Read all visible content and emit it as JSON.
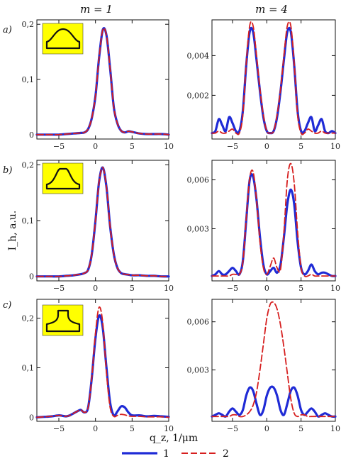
{
  "column_headers": [
    "m = 1",
    "m = 4"
  ],
  "row_labels": [
    "a)",
    "b)",
    "c)"
  ],
  "y_axis_label": "I_h, a.u.",
  "x_axis_label": "q_z, 1/μm",
  "legend": [
    {
      "label": "1",
      "color": "#1f2bd6",
      "style": "solid"
    },
    {
      "label": "2",
      "color": "#d61f1f",
      "style": "dashed"
    }
  ],
  "colors": {
    "series1": "#1f2bd6",
    "series2": "#d61f1f",
    "inset_fill": "#ffff00"
  },
  "inset_icons": [
    "ridge-profile-icon",
    "mesa-profile-icon",
    "notch-profile-icon"
  ],
  "chart_data": [
    {
      "panel": "a) m=1",
      "type": "line",
      "xlim": [
        -8,
        10
      ],
      "ylim": [
        -0.008,
        0.208
      ],
      "xticks": [
        -5,
        0,
        5,
        10
      ],
      "xtick_labels": [
        "−5",
        "0",
        "5",
        "10"
      ],
      "yticks": [
        0,
        0.1,
        0.2
      ],
      "ytick_labels": [
        "0",
        "0,1",
        "0,2"
      ],
      "x": [
        -8,
        -7,
        -6,
        -5,
        -4,
        -3,
        -2,
        -1.5,
        -1,
        -0.5,
        0,
        0.5,
        1,
        1.5,
        2,
        2.5,
        3,
        3.5,
        4,
        4.5,
        5,
        6,
        7,
        8,
        9,
        10
      ],
      "series": [
        {
          "name": "1",
          "values": [
            0,
            0,
            0,
            0,
            0.001,
            0.002,
            0.003,
            0.004,
            0.01,
            0.03,
            0.07,
            0.14,
            0.19,
            0.18,
            0.12,
            0.05,
            0.02,
            0.007,
            0.004,
            0.006,
            0.005,
            0.002,
            0.001,
            0.001,
            0.001,
            0
          ]
        },
        {
          "name": "2",
          "values": [
            0,
            0,
            0,
            0,
            0.001,
            0.002,
            0.003,
            0.004,
            0.01,
            0.03,
            0.07,
            0.14,
            0.19,
            0.18,
            0.12,
            0.05,
            0.02,
            0.007,
            0.004,
            0.006,
            0.005,
            0.002,
            0.001,
            0.001,
            0.001,
            0
          ]
        }
      ]
    },
    {
      "panel": "a) m=4",
      "type": "line",
      "xlim": [
        -8,
        10
      ],
      "ylim": [
        -0.0002,
        0.0058
      ],
      "xticks": [
        -5,
        0,
        5,
        10
      ],
      "xtick_labels": [
        "−5",
        "0",
        "5",
        "10"
      ],
      "yticks": [
        0.002,
        0.004
      ],
      "ytick_labels": [
        "0,002",
        "0,004"
      ],
      "x": [
        -8,
        -7.5,
        -7,
        -6.5,
        -6,
        -5.5,
        -5,
        -4.5,
        -4,
        -3.5,
        -3,
        -2.5,
        -2,
        -1.5,
        -1,
        -0.5,
        0,
        0.5,
        1,
        1.5,
        2,
        2.5,
        3,
        3.5,
        4,
        4.5,
        5,
        5.5,
        6,
        6.5,
        7,
        7.5,
        8,
        8.5,
        9,
        9.5,
        10
      ],
      "series": [
        {
          "name": "1",
          "values": [
            0.0001,
            0.0002,
            0.0008,
            0.0005,
            0.0002,
            0.0009,
            0.0006,
            0.0002,
            0.0002,
            0.0012,
            0.0035,
            0.0052,
            0.0052,
            0.0038,
            0.0022,
            0.0009,
            0.0002,
            0.0001,
            0.0002,
            0.0009,
            0.0022,
            0.0038,
            0.0052,
            0.0052,
            0.0035,
            0.0012,
            0.0002,
            0.0002,
            0.0006,
            0.0009,
            0.0002,
            0.0005,
            0.0008,
            0.0002,
            0.0001,
            0.0002,
            0.0001
          ]
        },
        {
          "name": "2",
          "values": [
            0.0001,
            0.0001,
            0.0002,
            0.0001,
            0.0001,
            0.0002,
            0.0003,
            0.0001,
            0.0001,
            0.001,
            0.0036,
            0.0055,
            0.0055,
            0.004,
            0.0023,
            0.001,
            0.0002,
            0.0001,
            0.0002,
            0.001,
            0.0023,
            0.004,
            0.0055,
            0.0055,
            0.0036,
            0.001,
            0.0001,
            0.0001,
            0.0003,
            0.0002,
            0.0001,
            0.0001,
            0.0002,
            0.0001,
            0.0001,
            0.0001,
            0.0001
          ]
        }
      ]
    },
    {
      "panel": "b) m=1",
      "type": "line",
      "xlim": [
        -8,
        10
      ],
      "ylim": [
        -0.008,
        0.208
      ],
      "xticks": [
        -5,
        0,
        5,
        10
      ],
      "xtick_labels": [
        "−5",
        "0",
        "5",
        "10"
      ],
      "yticks": [
        0,
        0.1,
        0.2
      ],
      "ytick_labels": [
        "0",
        "0,1",
        "0,2"
      ],
      "x": [
        -8,
        -7,
        -6,
        -5,
        -4,
        -3,
        -2,
        -1.5,
        -1,
        -0.5,
        0,
        0.5,
        1,
        1.5,
        2,
        2.5,
        3,
        3.5,
        4,
        4.5,
        5,
        6,
        7,
        8,
        9,
        10
      ],
      "series": [
        {
          "name": "1",
          "values": [
            0,
            0,
            0,
            0,
            0.001,
            0.002,
            0.004,
            0.006,
            0.012,
            0.04,
            0.1,
            0.17,
            0.195,
            0.16,
            0.09,
            0.04,
            0.015,
            0.006,
            0.004,
            0.003,
            0.002,
            0.002,
            0.001,
            0.001,
            0,
            0
          ]
        },
        {
          "name": "2",
          "values": [
            0,
            0,
            0,
            0,
            0.001,
            0.002,
            0.004,
            0.006,
            0.012,
            0.04,
            0.1,
            0.17,
            0.195,
            0.16,
            0.09,
            0.04,
            0.015,
            0.006,
            0.004,
            0.003,
            0.002,
            0.002,
            0.001,
            0.001,
            0,
            0
          ]
        }
      ]
    },
    {
      "panel": "b) m=4",
      "type": "line",
      "xlim": [
        -8,
        10
      ],
      "ylim": [
        -0.0002,
        0.0072
      ],
      "xticks": [
        -5,
        0,
        5,
        10
      ],
      "xtick_labels": [
        "−5",
        "0",
        "5",
        "10"
      ],
      "yticks": [
        0.003,
        0.006
      ],
      "ytick_labels": [
        "0,003",
        "0,006"
      ],
      "x": [
        -8,
        -7.5,
        -7,
        -6.5,
        -6,
        -5.5,
        -5,
        -4.5,
        -4,
        -3.5,
        -3,
        -2.5,
        -2,
        -1.5,
        -1,
        -0.5,
        0,
        0.5,
        1,
        1.5,
        2,
        2.5,
        3,
        3.5,
        4,
        4.5,
        5,
        5.5,
        6,
        6.5,
        7,
        7.5,
        8,
        8.5,
        9,
        9.5,
        10
      ],
      "series": [
        {
          "name": "1",
          "values": [
            0.0001,
            0.0002,
            0.0004,
            0.0002,
            0.0002,
            0.0004,
            0.0006,
            0.0004,
            0.0002,
            0.001,
            0.0035,
            0.006,
            0.0062,
            0.0048,
            0.0025,
            0.0008,
            0.0002,
            0.0004,
            0.0006,
            0.0003,
            0.0008,
            0.0025,
            0.0045,
            0.0054,
            0.0045,
            0.0022,
            0.0006,
            0.0002,
            0.0004,
            0.0008,
            0.0004,
            0.0002,
            0.0003,
            0.0003,
            0.0002,
            0.0001,
            0.0001
          ]
        },
        {
          "name": "2",
          "values": [
            0.0001,
            0.0001,
            0.0001,
            0.0001,
            0.0001,
            0.0001,
            0.0002,
            0.0002,
            0.0002,
            0.0009,
            0.0036,
            0.0061,
            0.0065,
            0.0048,
            0.0022,
            0.0006,
            0.0002,
            0.0007,
            0.0012,
            0.0006,
            0.0005,
            0.0028,
            0.006,
            0.007,
            0.0058,
            0.0028,
            0.0006,
            0.0001,
            0.0001,
            0.0002,
            0.0001,
            0.0001,
            0.0001,
            0.0001,
            0.0001,
            0.0001,
            0.0001
          ]
        }
      ]
    },
    {
      "panel": "c) m=1",
      "type": "line",
      "xlim": [
        -8,
        10
      ],
      "ylim": [
        -0.008,
        0.238
      ],
      "xticks": [
        -5,
        0,
        5,
        10
      ],
      "xtick_labels": [
        "−5",
        "0",
        "5",
        "10"
      ],
      "yticks": [
        0,
        0.1,
        0.2
      ],
      "ytick_labels": [
        "0",
        "0,1",
        "0,2"
      ],
      "x": [
        -8,
        -7,
        -6,
        -5,
        -4.5,
        -4,
        -3.5,
        -3,
        -2.5,
        -2,
        -1.5,
        -1,
        -0.5,
        0,
        0.5,
        1,
        1.5,
        2,
        2.5,
        3,
        3.5,
        4,
        4.5,
        5,
        6,
        7,
        8,
        9,
        10
      ],
      "series": [
        {
          "name": "1",
          "values": [
            0,
            0.001,
            0.002,
            0.004,
            0.003,
            0.002,
            0.004,
            0.008,
            0.012,
            0.015,
            0.01,
            0.02,
            0.08,
            0.16,
            0.205,
            0.18,
            0.1,
            0.03,
            0.004,
            0.012,
            0.022,
            0.02,
            0.01,
            0.004,
            0.004,
            0.002,
            0.003,
            0.002,
            0.001
          ]
        },
        {
          "name": "2",
          "values": [
            0,
            0.001,
            0.002,
            0.004,
            0.003,
            0.002,
            0.004,
            0.008,
            0.012,
            0.015,
            0.01,
            0.02,
            0.08,
            0.17,
            0.222,
            0.19,
            0.09,
            0.02,
            0.002,
            0.004,
            0.006,
            0.005,
            0.003,
            0.002,
            0.002,
            0.001,
            0.001,
            0.001,
            0
          ]
        }
      ]
    },
    {
      "panel": "c) m=4",
      "type": "line",
      "xlim": [
        -8,
        10
      ],
      "ylim": [
        -0.0002,
        0.0074
      ],
      "xticks": [
        -5,
        0,
        5,
        10
      ],
      "xtick_labels": [
        "−5",
        "0",
        "5",
        "10"
      ],
      "yticks": [
        0.003,
        0.006
      ],
      "ytick_labels": [
        "0,003",
        "0,006"
      ],
      "x": [
        -8,
        -7.5,
        -7,
        -6.5,
        -6,
        -5.5,
        -5,
        -4.5,
        -4,
        -3.5,
        -3,
        -2.5,
        -2,
        -1.5,
        -1,
        -0.5,
        0,
        0.5,
        1,
        1.5,
        2,
        2.5,
        3,
        3.5,
        4,
        4.5,
        5,
        5.5,
        6,
        6.5,
        7,
        7.5,
        8,
        8.5,
        9,
        9.5,
        10
      ],
      "series": [
        {
          "name": "1",
          "values": [
            0.0001,
            0.0002,
            0.0003,
            0.0002,
            0.0001,
            0.0004,
            0.0006,
            0.0004,
            0.0002,
            0.0005,
            0.0014,
            0.0019,
            0.0017,
            0.0009,
            0.0002,
            0.0005,
            0.0014,
            0.0019,
            0.0019,
            0.0014,
            0.0005,
            0.0002,
            0.0009,
            0.0017,
            0.0019,
            0.0014,
            0.0005,
            0.0002,
            0.0004,
            0.0006,
            0.0004,
            0.0001,
            0.0002,
            0.0003,
            0.0002,
            0.0001,
            0.0001
          ]
        },
        {
          "name": "2",
          "values": [
            0.0001,
            0.0001,
            0.0001,
            0.0001,
            0.0001,
            0.0001,
            0.0002,
            0.0002,
            0.0001,
            0.0001,
            0.0002,
            0.0004,
            0.0008,
            0.0016,
            0.003,
            0.0046,
            0.0062,
            0.0071,
            0.0072,
            0.0068,
            0.0058,
            0.0044,
            0.0028,
            0.0012,
            0.0003,
            0.0001,
            0.0002,
            0.0002,
            0.0001,
            0.0001,
            0.0001,
            0.0001,
            0.0001,
            0.0001,
            0.0001,
            0.0001,
            0.0001
          ]
        }
      ]
    }
  ]
}
